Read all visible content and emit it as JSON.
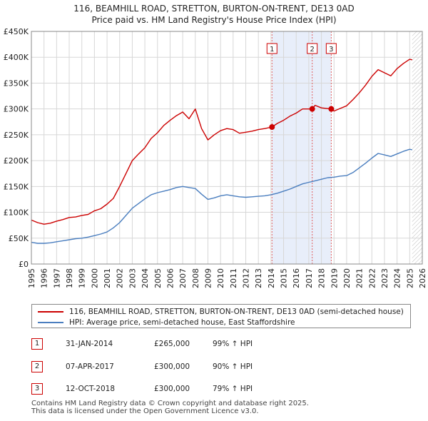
{
  "chart_data": {
    "type": "line",
    "title": "116, BEAMHILL ROAD, STRETTON, BURTON-ON-TRENT, DE13 0AD",
    "subtitle": "Price paid vs. HM Land Registry's House Price Index (HPI)",
    "xlim": [
      1995,
      2026
    ],
    "ylim": [
      0,
      450000
    ],
    "x_ticks": [
      "1995",
      "1996",
      "1997",
      "1998",
      "1999",
      "2000",
      "2001",
      "2002",
      "2003",
      "2004",
      "2005",
      "2006",
      "2007",
      "2008",
      "2009",
      "2010",
      "2011",
      "2012",
      "2013",
      "2014",
      "2015",
      "2016",
      "2017",
      "2018",
      "2019",
      "2020",
      "2021",
      "2022",
      "2023",
      "2024",
      "2025",
      "2026"
    ],
    "y_ticks": [
      {
        "value": 0,
        "label": "£0"
      },
      {
        "value": 50000,
        "label": "£50K"
      },
      {
        "value": 100000,
        "label": "£100K"
      },
      {
        "value": 150000,
        "label": "£150K"
      },
      {
        "value": 200000,
        "label": "£200K"
      },
      {
        "value": 250000,
        "label": "£250K"
      },
      {
        "value": 300000,
        "label": "£300K"
      },
      {
        "value": 350000,
        "label": "£350K"
      },
      {
        "value": 400000,
        "label": "£400K"
      },
      {
        "value": 450000,
        "label": "£450K"
      }
    ],
    "grid": true,
    "data_end_x": 2025.2,
    "series": [
      {
        "name": "116, BEAMHILL ROAD, STRETTON, BURTON-ON-TRENT, DE13 0AD (semi-detached house)",
        "color": "#cc0000",
        "points": [
          [
            1995,
            85000
          ],
          [
            1995.5,
            80000
          ],
          [
            1996,
            77000
          ],
          [
            1996.5,
            79000
          ],
          [
            1997,
            83000
          ],
          [
            1997.5,
            86000
          ],
          [
            1998,
            90000
          ],
          [
            1998.5,
            91000
          ],
          [
            1999,
            94000
          ],
          [
            1999.5,
            96000
          ],
          [
            2000,
            103000
          ],
          [
            2000.5,
            107000
          ],
          [
            2001,
            116000
          ],
          [
            2001.5,
            127000
          ],
          [
            2002,
            150000
          ],
          [
            2002.5,
            175000
          ],
          [
            2003,
            200000
          ],
          [
            2003.5,
            213000
          ],
          [
            2004,
            225000
          ],
          [
            2004.5,
            243000
          ],
          [
            2005,
            254000
          ],
          [
            2005.5,
            268000
          ],
          [
            2006,
            278000
          ],
          [
            2006.5,
            287000
          ],
          [
            2007,
            294000
          ],
          [
            2007.5,
            281000
          ],
          [
            2008,
            300000
          ],
          [
            2008.5,
            262000
          ],
          [
            2009,
            240000
          ],
          [
            2009.5,
            250000
          ],
          [
            2010,
            258000
          ],
          [
            2010.5,
            262000
          ],
          [
            2011,
            260000
          ],
          [
            2011.5,
            253000
          ],
          [
            2012,
            255000
          ],
          [
            2012.5,
            257000
          ],
          [
            2013,
            260000
          ],
          [
            2013.5,
            262000
          ],
          [
            2014.08,
            265000
          ],
          [
            2014.5,
            272000
          ],
          [
            2015,
            278000
          ],
          [
            2015.5,
            286000
          ],
          [
            2016,
            292000
          ],
          [
            2016.5,
            300000
          ],
          [
            2017.27,
            300000
          ],
          [
            2017.5,
            307000
          ],
          [
            2018,
            302000
          ],
          [
            2018.78,
            300000
          ],
          [
            2019,
            296000
          ],
          [
            2019.5,
            301000
          ],
          [
            2020,
            306000
          ],
          [
            2020.5,
            318000
          ],
          [
            2021,
            331000
          ],
          [
            2021.5,
            346000
          ],
          [
            2022,
            363000
          ],
          [
            2022.5,
            376000
          ],
          [
            2023,
            370000
          ],
          [
            2023.5,
            364000
          ],
          [
            2024,
            378000
          ],
          [
            2024.5,
            388000
          ],
          [
            2025,
            396000
          ],
          [
            2025.2,
            395000
          ]
        ]
      },
      {
        "name": "HPI: Average price, semi-detached house, East Staffordshire",
        "color": "#4a7ebf",
        "points": [
          [
            1995,
            42000
          ],
          [
            1995.5,
            40000
          ],
          [
            1996,
            40000
          ],
          [
            1996.5,
            41000
          ],
          [
            1997,
            43000
          ],
          [
            1997.5,
            45000
          ],
          [
            1998,
            47000
          ],
          [
            1998.5,
            49000
          ],
          [
            1999,
            50000
          ],
          [
            1999.5,
            52000
          ],
          [
            2000,
            55000
          ],
          [
            2000.5,
            58000
          ],
          [
            2001,
            62000
          ],
          [
            2001.5,
            70000
          ],
          [
            2002,
            80000
          ],
          [
            2002.5,
            94000
          ],
          [
            2003,
            108000
          ],
          [
            2003.5,
            117000
          ],
          [
            2004,
            126000
          ],
          [
            2004.5,
            134000
          ],
          [
            2005,
            138000
          ],
          [
            2005.5,
            141000
          ],
          [
            2006,
            144000
          ],
          [
            2006.5,
            148000
          ],
          [
            2007,
            150000
          ],
          [
            2007.5,
            148000
          ],
          [
            2008,
            146000
          ],
          [
            2008.5,
            135000
          ],
          [
            2009,
            125000
          ],
          [
            2009.5,
            128000
          ],
          [
            2010,
            132000
          ],
          [
            2010.5,
            134000
          ],
          [
            2011,
            132000
          ],
          [
            2011.5,
            130000
          ],
          [
            2012,
            129000
          ],
          [
            2012.5,
            130000
          ],
          [
            2013,
            131000
          ],
          [
            2013.5,
            132000
          ],
          [
            2014,
            134000
          ],
          [
            2014.5,
            137000
          ],
          [
            2015,
            141000
          ],
          [
            2015.5,
            145000
          ],
          [
            2016,
            150000
          ],
          [
            2016.5,
            155000
          ],
          [
            2017,
            158000
          ],
          [
            2017.5,
            161000
          ],
          [
            2018,
            164000
          ],
          [
            2018.5,
            167000
          ],
          [
            2019,
            168000
          ],
          [
            2019.5,
            170000
          ],
          [
            2020,
            171000
          ],
          [
            2020.5,
            177000
          ],
          [
            2021,
            186000
          ],
          [
            2021.5,
            195000
          ],
          [
            2022,
            205000
          ],
          [
            2022.5,
            214000
          ],
          [
            2023,
            211000
          ],
          [
            2023.5,
            208000
          ],
          [
            2024,
            213000
          ],
          [
            2024.5,
            218000
          ],
          [
            2025,
            222000
          ],
          [
            2025.2,
            221000
          ]
        ]
      }
    ],
    "sales": [
      {
        "marker": "1",
        "x": 2014.08,
        "price": 265000,
        "date": "31-JAN-2014",
        "price_label": "£265,000",
        "hpi_label": "99% ↑ HPI"
      },
      {
        "marker": "2",
        "x": 2017.27,
        "price": 300000,
        "date": "07-APR-2017",
        "price_label": "£300,000",
        "hpi_label": "90% ↑ HPI"
      },
      {
        "marker": "3",
        "x": 2018.78,
        "price": 300000,
        "date": "12-OCT-2018",
        "price_label": "£300,000",
        "hpi_label": "79% ↑ HPI"
      }
    ]
  },
  "legend": {
    "property_label": "116, BEAMHILL ROAD, STRETTON, BURTON-ON-TRENT, DE13 0AD (semi-detached house)",
    "hpi_label": "HPI: Average price, semi-detached house, East Staffordshire"
  },
  "colors": {
    "property": "#cc0000",
    "hpi": "#4a7ebf",
    "shade": "#e8eefa",
    "grid": "#d7d7d7"
  },
  "footer": {
    "line1": "Contains HM Land Registry data © Crown copyright and database right 2025.",
    "line2": "This data is licensed under the Open Government Licence v3.0."
  }
}
